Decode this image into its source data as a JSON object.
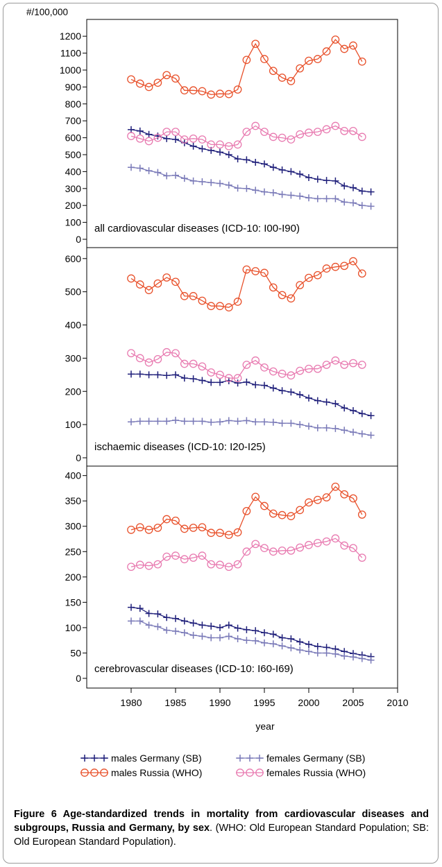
{
  "chart_data": {
    "type": "line",
    "y_unit": "#/100,000",
    "xlabel": "year",
    "x_range": [
      1975,
      2010
    ],
    "x_ticks": [
      1980,
      1985,
      1990,
      1995,
      2000,
      2005,
      2010
    ],
    "legend_position": "bottom",
    "legend": [
      {
        "key": "mg",
        "label": "males Germany (SB)",
        "color": "#1f1f7a",
        "marker": "plus"
      },
      {
        "key": "fg",
        "label": "females Germany (SB)",
        "color": "#7a7ab8",
        "marker": "plus"
      },
      {
        "key": "mr",
        "label": "males Russia (WHO)",
        "color": "#e8502a",
        "marker": "circle"
      },
      {
        "key": "fr",
        "label": "females Russia (WHO)",
        "color": "#e87ab0",
        "marker": "circle"
      }
    ],
    "panels": [
      {
        "label": "all cardiovascular diseases (ICD-10: I00-I90)",
        "ylim": [
          0,
          1250
        ],
        "y_ticks": [
          0,
          100,
          200,
          300,
          400,
          500,
          600,
          700,
          800,
          900,
          1000,
          1100,
          1200
        ],
        "series": [
          {
            "key": "mr",
            "x": [
              1980,
              1981,
              1982,
              1983,
              1984,
              1985,
              1986,
              1987,
              1988,
              1989,
              1990,
              1991,
              1992,
              1993,
              1994,
              1995,
              1996,
              1997,
              1998,
              1999,
              2000,
              2001,
              2002,
              2003,
              2004,
              2005,
              2006
            ],
            "values": [
              945,
              920,
              900,
              925,
              970,
              950,
              880,
              880,
              875,
              855,
              860,
              858,
              885,
              1060,
              1155,
              1065,
              995,
              955,
              935,
              1010,
              1055,
              1065,
              1110,
              1180,
              1125,
              1145,
              1050
            ]
          },
          {
            "key": "fr",
            "x": [
              1980,
              1981,
              1982,
              1983,
              1984,
              1985,
              1986,
              1987,
              1988,
              1989,
              1990,
              1991,
              1992,
              1993,
              1994,
              1995,
              1996,
              1997,
              1998,
              1999,
              2000,
              2001,
              2002,
              2003,
              2004,
              2005,
              2006
            ],
            "values": [
              610,
              595,
              580,
              600,
              635,
              635,
              590,
              595,
              590,
              560,
              560,
              550,
              560,
              635,
              670,
              635,
              605,
              600,
              590,
              620,
              630,
              635,
              650,
              670,
              640,
              640,
              605
            ]
          },
          {
            "key": "mg",
            "x": [
              1980,
              1981,
              1982,
              1983,
              1984,
              1985,
              1986,
              1987,
              1988,
              1989,
              1990,
              1991,
              1992,
              1993,
              1994,
              1995,
              1996,
              1997,
              1998,
              1999,
              2000,
              2001,
              2002,
              2003,
              2004,
              2005,
              2006,
              2007
            ],
            "values": [
              648,
              640,
              620,
              610,
              595,
              590,
              570,
              550,
              535,
              525,
              515,
              500,
              475,
              470,
              455,
              445,
              425,
              410,
              400,
              385,
              365,
              355,
              348,
              345,
              315,
              305,
              285,
              280
            ]
          },
          {
            "key": "fg",
            "x": [
              1980,
              1981,
              1982,
              1983,
              1984,
              1985,
              1986,
              1987,
              1988,
              1989,
              1990,
              1991,
              1992,
              1993,
              1994,
              1995,
              1996,
              1997,
              1998,
              1999,
              2000,
              2001,
              2002,
              2003,
              2004,
              2005,
              2006,
              2007
            ],
            "values": [
              425,
              420,
              405,
              395,
              375,
              378,
              360,
              345,
              340,
              335,
              330,
              320,
              302,
              300,
              290,
              280,
              275,
              265,
              260,
              255,
              245,
              240,
              240,
              240,
              220,
              215,
              200,
              195
            ]
          }
        ]
      },
      {
        "label": "ischaemic diseases (ICD-10: I20-I25)",
        "ylim": [
          0,
          610
        ],
        "y_ticks": [
          0,
          100,
          200,
          300,
          400,
          500,
          600
        ],
        "series": [
          {
            "key": "mr",
            "x": [
              1980,
              1981,
              1982,
              1983,
              1984,
              1985,
              1986,
              1987,
              1988,
              1989,
              1990,
              1991,
              1992,
              1993,
              1994,
              1995,
              1996,
              1997,
              1998,
              1999,
              2000,
              2001,
              2002,
              2003,
              2004,
              2005,
              2006
            ],
            "values": [
              540,
              522,
              505,
              525,
              543,
              530,
              487,
              487,
              473,
              457,
              457,
              453,
              470,
              567,
              562,
              557,
              513,
              490,
              480,
              520,
              542,
              550,
              570,
              575,
              578,
              592,
              555
            ]
          },
          {
            "key": "fr",
            "x": [
              1980,
              1981,
              1982,
              1983,
              1984,
              1985,
              1986,
              1987,
              1988,
              1989,
              1990,
              1991,
              1992,
              1993,
              1994,
              1995,
              1996,
              1997,
              1998,
              1999,
              2000,
              2001,
              2002,
              2003,
              2004,
              2005,
              2006
            ],
            "values": [
              315,
              300,
              287,
              297,
              318,
              315,
              283,
              283,
              275,
              257,
              250,
              240,
              240,
              280,
              293,
              272,
              260,
              253,
              248,
              262,
              268,
              268,
              280,
              293,
              280,
              285,
              280
            ]
          },
          {
            "key": "mg",
            "x": [
              1980,
              1981,
              1982,
              1983,
              1984,
              1985,
              1986,
              1987,
              1988,
              1989,
              1990,
              1991,
              1992,
              1993,
              1994,
              1995,
              1996,
              1997,
              1998,
              1999,
              2000,
              2001,
              2002,
              2003,
              2004,
              2005,
              2006,
              2007
            ],
            "values": [
              252,
              252,
              250,
              250,
              248,
              250,
              240,
              238,
              233,
              227,
              227,
              232,
              225,
              228,
              220,
              218,
              210,
              202,
              198,
              190,
              180,
              172,
              168,
              163,
              150,
              142,
              133,
              127
            ]
          },
          {
            "key": "fg",
            "x": [
              1980,
              1981,
              1982,
              1983,
              1984,
              1985,
              1986,
              1987,
              1988,
              1989,
              1990,
              1991,
              1992,
              1993,
              1994,
              1995,
              1996,
              1997,
              1998,
              1999,
              2000,
              2001,
              2002,
              2003,
              2004,
              2005,
              2006,
              2007
            ],
            "values": [
              108,
              110,
              110,
              110,
              110,
              113,
              110,
              110,
              110,
              107,
              108,
              112,
              110,
              112,
              108,
              108,
              107,
              104,
              104,
              100,
              95,
              90,
              90,
              88,
              83,
              77,
              72,
              68
            ]
          }
        ]
      },
      {
        "label": "cerebrovascular diseases (ICD-10: I60-I69)",
        "ylim": [
          0,
          405
        ],
        "y_ticks": [
          0,
          50,
          100,
          150,
          200,
          250,
          300,
          350,
          400
        ],
        "series": [
          {
            "key": "mr",
            "x": [
              1980,
              1981,
              1982,
              1983,
              1984,
              1985,
              1986,
              1987,
              1988,
              1989,
              1990,
              1991,
              1992,
              1993,
              1994,
              1995,
              1996,
              1997,
              1998,
              1999,
              2000,
              2001,
              2002,
              2003,
              2004,
              2005,
              2006
            ],
            "values": [
              293,
              298,
              293,
              297,
              314,
              311,
              295,
              297,
              298,
              287,
              287,
              283,
              288,
              330,
              358,
              340,
              325,
              322,
              320,
              332,
              347,
              352,
              357,
              378,
              363,
              355,
              323
            ]
          },
          {
            "key": "fr",
            "x": [
              1980,
              1981,
              1982,
              1983,
              1984,
              1985,
              1986,
              1987,
              1988,
              1989,
              1990,
              1991,
              1992,
              1993,
              1994,
              1995,
              1996,
              1997,
              1998,
              1999,
              2000,
              2001,
              2002,
              2003,
              2004,
              2005,
              2006
            ],
            "values": [
              220,
              224,
              222,
              225,
              240,
              242,
              235,
              238,
              242,
              225,
              224,
              220,
              225,
              250,
              265,
              257,
              250,
              252,
              252,
              258,
              263,
              267,
              270,
              276,
              262,
              257,
              238
            ]
          },
          {
            "key": "mg",
            "x": [
              1980,
              1981,
              1982,
              1983,
              1984,
              1985,
              1986,
              1987,
              1988,
              1989,
              1990,
              1991,
              1992,
              1993,
              1994,
              1995,
              1996,
              1997,
              1998,
              1999,
              2000,
              2001,
              2002,
              2003,
              2004,
              2005,
              2006,
              2007
            ],
            "values": [
              140,
              138,
              128,
              127,
              120,
              118,
              113,
              109,
              105,
              103,
              100,
              105,
              99,
              96,
              94,
              90,
              87,
              80,
              78,
              72,
              67,
              63,
              61,
              58,
              53,
              49,
              46,
              43
            ]
          },
          {
            "key": "fg",
            "x": [
              1980,
              1981,
              1982,
              1983,
              1984,
              1985,
              1986,
              1987,
              1988,
              1989,
              1990,
              1991,
              1992,
              1993,
              1994,
              1995,
              1996,
              1997,
              1998,
              1999,
              2000,
              2001,
              2002,
              2003,
              2004,
              2005,
              2006,
              2007
            ],
            "values": [
              113,
              113,
              105,
              102,
              95,
              93,
              90,
              85,
              83,
              80,
              80,
              83,
              78,
              75,
              74,
              70,
              68,
              64,
              60,
              56,
              53,
              50,
              50,
              48,
              44,
              42,
              39,
              36
            ]
          }
        ]
      }
    ]
  },
  "caption": {
    "prefix": "Figure 6 Age-standardized trends in mortality from cardiovascular diseases and subgroups, Russia and Germany, by sex",
    "suffix": ". (WHO: Old European Standard Population; SB: Old European Standard Population)."
  }
}
